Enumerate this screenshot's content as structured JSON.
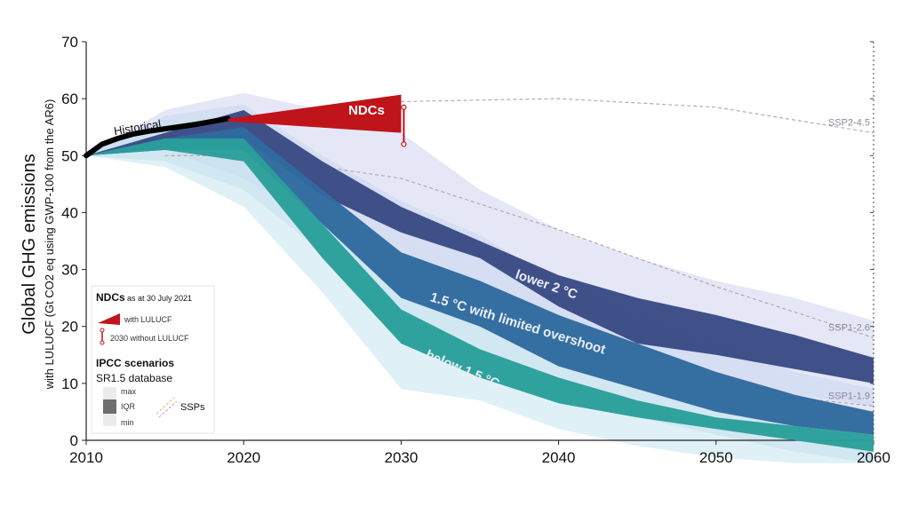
{
  "chart_data": {
    "type": "area",
    "ylabel": "Global GHG emissions",
    "ylabel_sub": "with LULUCF (Gt CO2 eq using GWP-100 from the AR6)",
    "xlim": [
      2010,
      2060
    ],
    "ylim": [
      0,
      70
    ],
    "x_ticks": [
      "2010",
      "2020",
      "2030",
      "2040",
      "2050",
      "2060"
    ],
    "y_ticks": [
      "0",
      "10",
      "20",
      "30",
      "40",
      "50",
      "60",
      "70"
    ],
    "x_tick_values": [
      2010,
      2020,
      2030,
      2040,
      2050,
      2060
    ],
    "y_tick_values": [
      0,
      10,
      20,
      30,
      40,
      50,
      60,
      70
    ],
    "historical": {
      "label": "Historical",
      "x": [
        2010,
        2011,
        2012,
        2013,
        2014,
        2015,
        2016,
        2017,
        2018,
        2019
      ],
      "y": [
        50.0,
        52.0,
        53.0,
        53.8,
        54.3,
        54.7,
        55.1,
        55.5,
        56.0,
        56.5
      ]
    },
    "ndcs": {
      "label": "NDCs",
      "with_lulucf": {
        "x": [
          2019,
          2030
        ],
        "lower": [
          56.0,
          54.0
        ],
        "upper": [
          56.5,
          60.7
        ]
      },
      "without_lulucf_2030": [
        52.0,
        58.5
      ]
    },
    "series": [
      {
        "name": "lower 2 °C",
        "color": "#3a4b85",
        "x": [
          2010,
          2015,
          2020,
          2025,
          2030,
          2035,
          2040,
          2045,
          2050,
          2055,
          2060
        ],
        "iqr_low": [
          50,
          52,
          53,
          43,
          36.5,
          32,
          23.5,
          17,
          15,
          12.5,
          10
        ],
        "iqr_high": [
          50,
          54,
          58,
          49,
          41,
          35,
          29,
          25,
          22,
          18.5,
          14.5
        ],
        "max": [
          50,
          58,
          61,
          58,
          54,
          44,
          37,
          32,
          28,
          25,
          21
        ],
        "min": [
          50,
          51,
          46,
          38,
          30,
          26,
          19,
          14,
          11,
          8,
          6
        ]
      },
      {
        "name": "1.5 °C with limited overshoot",
        "color": "#2f6a9e",
        "x": [
          2010,
          2015,
          2020,
          2025,
          2030,
          2035,
          2040,
          2045,
          2050,
          2055,
          2060
        ],
        "iqr_low": [
          50,
          51,
          51,
          38,
          25,
          20,
          13,
          9,
          5,
          2.5,
          1
        ],
        "iqr_high": [
          50,
          53,
          55,
          44,
          33,
          28,
          22,
          17,
          12,
          8,
          5
        ],
        "max": [
          50,
          57,
          59,
          50,
          42,
          36,
          28,
          22,
          17,
          12,
          9
        ],
        "min": [
          50,
          49,
          44,
          33,
          18,
          13,
          8,
          4,
          1,
          -2,
          -4
        ]
      },
      {
        "name": "below 1.5 °C",
        "color": "#2a9f9a",
        "x": [
          2010,
          2015,
          2020,
          2025,
          2030,
          2035,
          2040,
          2045,
          2050,
          2055,
          2060
        ],
        "iqr_low": [
          50,
          51,
          49,
          32,
          17,
          11,
          6.5,
          4,
          2,
          0,
          -2
        ],
        "iqr_high": [
          50,
          53,
          53,
          38,
          23,
          16,
          11,
          7,
          4,
          2.5,
          1
        ],
        "max": [
          50,
          56,
          57,
          44,
          31,
          24,
          17,
          12,
          8,
          5,
          3
        ],
        "min": [
          50,
          48,
          41,
          26,
          9,
          7,
          2,
          -1,
          -3,
          -4,
          -4
        ]
      }
    ],
    "ssps": [
      {
        "name": "SSP2-4.5",
        "x": [
          2030,
          2040,
          2050,
          2060
        ],
        "y": [
          59.5,
          60,
          58.5,
          54
        ]
      },
      {
        "name": "SSP1-2.6",
        "x": [
          2015,
          2020,
          2030,
          2040,
          2050,
          2060
        ],
        "y": [
          50,
          50,
          46,
          37,
          27,
          18
        ]
      },
      {
        "name": "SSP1-1.9",
        "x": [
          2020,
          2030,
          2040,
          2050,
          2060
        ],
        "y": [
          50,
          27,
          16,
          9,
          6
        ]
      }
    ],
    "legend": {
      "ndcs_title": "NDCs",
      "ndcs_date": "as at 30 July 2021",
      "with_lulucf": "with LULUCF",
      "without_lulucf": "2030 without LULUCF",
      "ipcc_title": "IPCC scenarios",
      "db": "SR1.5 database",
      "max": "max",
      "iqr": "IQR",
      "min": "min",
      "ssps": "SSPs"
    },
    "colors": {
      "ndc_red": "#c0141b",
      "historical": "#000000",
      "envelope": "#c9cdef",
      "ssp_line": "#b8a0a8"
    }
  }
}
